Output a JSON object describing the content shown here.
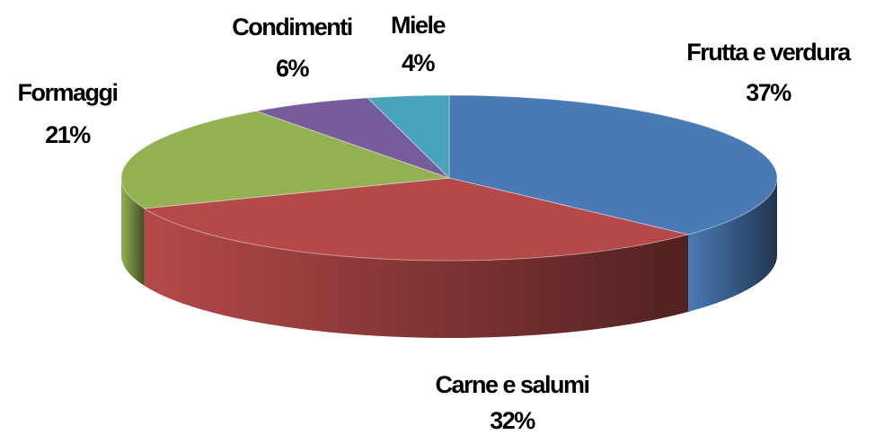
{
  "chart_data": {
    "type": "pie3d",
    "categories": [
      "Frutta e verdura",
      "Carne e salumi",
      "Formaggi",
      "Condimenti",
      "Miele"
    ],
    "values": [
      37,
      32,
      21,
      6,
      4
    ],
    "value_labels": [
      "37%",
      "32%",
      "21%",
      "6%",
      "4%"
    ],
    "colors": [
      "#4a7ab5",
      "#b5494a",
      "#93b052",
      "#775c9c",
      "#4aa3bd"
    ]
  }
}
